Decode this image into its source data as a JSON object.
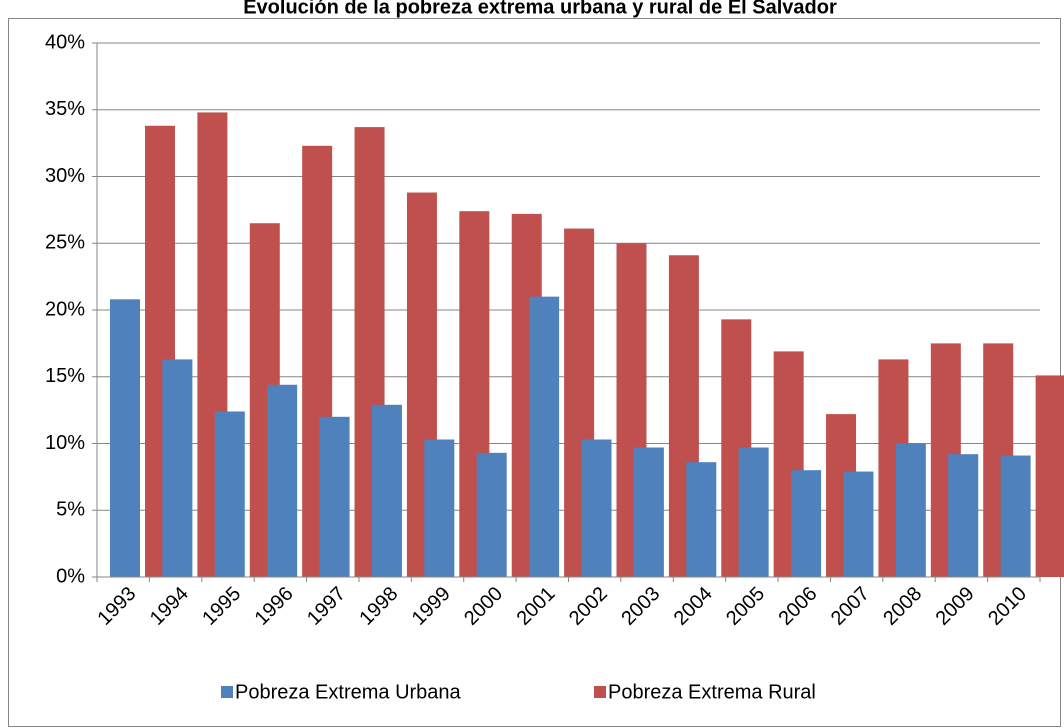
{
  "chart_data": {
    "type": "bar",
    "title": "Evolución de la pobreza extrema urbana y rural de El Salvador",
    "categories": [
      "1993",
      "1994",
      "1995",
      "1996",
      "1997",
      "1998",
      "1999",
      "2000",
      "2001",
      "2002",
      "2003",
      "2004",
      "2005",
      "2006",
      "2007",
      "2008",
      "2009",
      "2010"
    ],
    "series": [
      {
        "name": "Pobreza Extrema Urbana",
        "color": "#4f81bd",
        "values": [
          20.8,
          16.3,
          12.4,
          14.4,
          12.0,
          12.9,
          10.3,
          9.3,
          21.0,
          10.3,
          9.7,
          8.6,
          9.7,
          8.0,
          7.9,
          10.0,
          9.2,
          9.1
        ]
      },
      {
        "name": "Pobreza Extrema Rural",
        "color": "#c0504d",
        "values": [
          33.8,
          34.8,
          26.5,
          32.3,
          33.7,
          28.8,
          27.4,
          27.2,
          26.1,
          25.0,
          24.1,
          19.3,
          16.9,
          12.2,
          16.3,
          17.5,
          17.5,
          15.1
        ]
      }
    ],
    "ylim": [
      0,
      40
    ],
    "yticks": [
      {
        "value": 0,
        "label": "0%"
      },
      {
        "value": 5,
        "label": "5%"
      },
      {
        "value": 10,
        "label": "10%"
      },
      {
        "value": 15,
        "label": "15%"
      },
      {
        "value": 20,
        "label": "20%"
      },
      {
        "value": 25,
        "label": "25%"
      },
      {
        "value": 30,
        "label": "30%"
      },
      {
        "value": 35,
        "label": "35%"
      },
      {
        "value": 40,
        "label": "40%"
      }
    ],
    "grid": true,
    "legend": "bottom"
  }
}
